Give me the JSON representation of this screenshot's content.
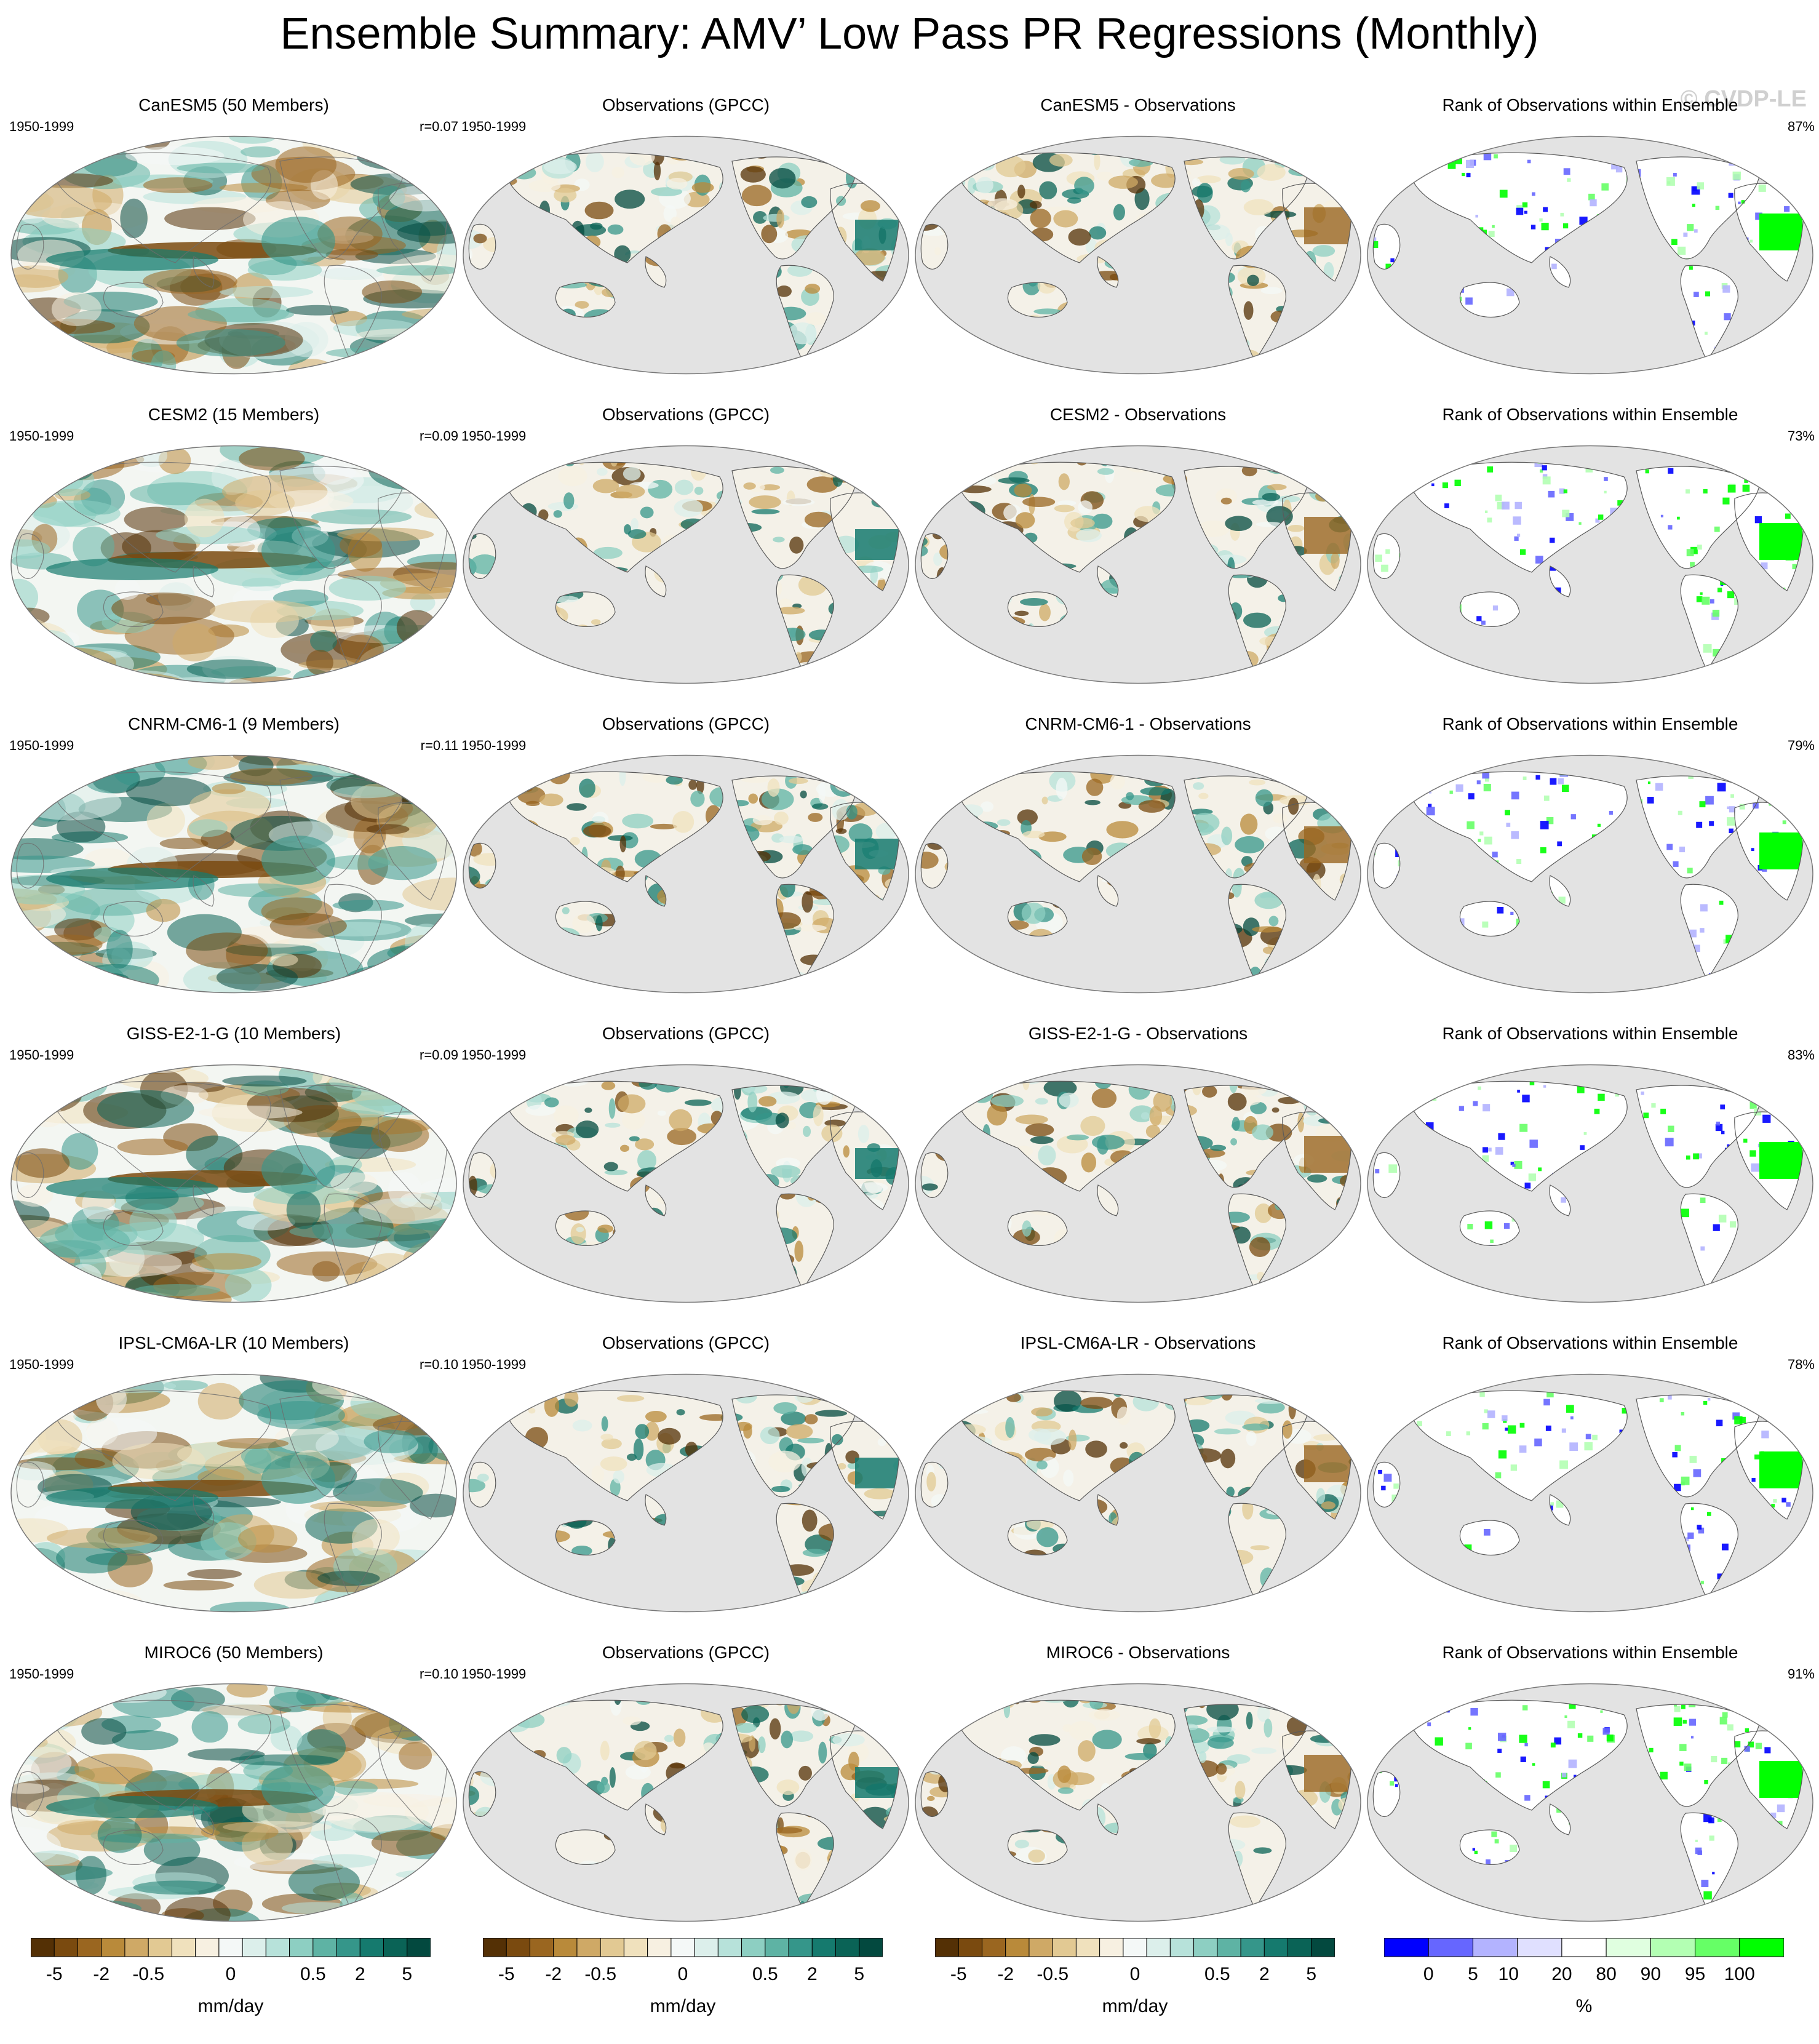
{
  "title": "Ensemble Summary: AMV’ Low Pass PR Regressions (Monthly)",
  "watermark": "© CVDP-LE",
  "colors": {
    "ocean_mask": "#e3e3e3",
    "coast": "#555555",
    "brown_dark": "#5e3607",
    "teal_dark": "#0b5a4c",
    "rank_blue": "#0000ff",
    "rank_green": "#00ff00"
  },
  "rows": [
    {
      "model": {
        "title": "CanESM5 (50 Members)",
        "period": "1950-1999",
        "r": "r=0.07"
      },
      "obs": {
        "title": "Observations (GPCC)",
        "period": "1950-1999"
      },
      "diff": {
        "title": "CanESM5 - Observations"
      },
      "rank": {
        "title": "Rank of Observations within Ensemble",
        "pct": "87%"
      }
    },
    {
      "model": {
        "title": "CESM2 (15 Members)",
        "period": "1950-1999",
        "r": "r=0.09"
      },
      "obs": {
        "title": "Observations (GPCC)",
        "period": "1950-1999"
      },
      "diff": {
        "title": "CESM2 - Observations"
      },
      "rank": {
        "title": "Rank of Observations within Ensemble",
        "pct": "73%"
      }
    },
    {
      "model": {
        "title": "CNRM-CM6-1 (9 Members)",
        "period": "1950-1999",
        "r": "r=0.11"
      },
      "obs": {
        "title": "Observations (GPCC)",
        "period": "1950-1999"
      },
      "diff": {
        "title": "CNRM-CM6-1 - Observations"
      },
      "rank": {
        "title": "Rank of Observations within Ensemble",
        "pct": "79%"
      }
    },
    {
      "model": {
        "title": "GISS-E2-1-G (10 Members)",
        "period": "1950-1999",
        "r": "r=0.09"
      },
      "obs": {
        "title": "Observations (GPCC)",
        "period": "1950-1999"
      },
      "diff": {
        "title": "GISS-E2-1-G - Observations"
      },
      "rank": {
        "title": "Rank of Observations within Ensemble",
        "pct": "83%"
      }
    },
    {
      "model": {
        "title": "IPSL-CM6A-LR (10 Members)",
        "period": "1950-1999",
        "r": "r=0.10"
      },
      "obs": {
        "title": "Observations (GPCC)",
        "period": "1950-1999"
      },
      "diff": {
        "title": "IPSL-CM6A-LR - Observations"
      },
      "rank": {
        "title": "Rank of Observations within Ensemble",
        "pct": "78%"
      }
    },
    {
      "model": {
        "title": "MIROC6 (50 Members)",
        "period": "1950-1999",
        "r": "r=0.10"
      },
      "obs": {
        "title": "Observations (GPCC)",
        "period": "1950-1999"
      },
      "diff": {
        "title": "MIROC6 - Observations"
      },
      "rank": {
        "title": "Rank of Observations within Ensemble",
        "pct": "91%"
      }
    }
  ],
  "chart_data": {
    "type": "heatmap",
    "projection": "Robinson, Pacific-centered",
    "fields": [
      "model regression (global)",
      "observations (land only)",
      "model minus observations (land only)",
      "rank of observations within ensemble (land only)"
    ],
    "colorbar_pr": {
      "unit": "mm/day",
      "tick_labels": [
        "-5",
        "-2",
        "-0.5",
        "0",
        "0.5",
        "2",
        "5"
      ],
      "colors": [
        "#543005",
        "#7a4a0f",
        "#9a6620",
        "#b98a3a",
        "#cfa966",
        "#e2c993",
        "#f0e1bd",
        "#f7f0e1",
        "#f4f8f7",
        "#dcefeb",
        "#b7e2da",
        "#8dcfc2",
        "#5eb3a4",
        "#35968a",
        "#157a6e",
        "#0a6356",
        "#03493f"
      ]
    },
    "colorbar_rank": {
      "unit": "%",
      "tick_labels": [
        "0",
        "5",
        "10",
        "20",
        "80",
        "90",
        "95",
        "100"
      ],
      "colors": [
        "#0000ff",
        "#6666ff",
        "#b3b3ff",
        "#e0e0ff",
        "#ffffff",
        "#e0ffe0",
        "#b3ffb3",
        "#66ff66",
        "#00ff00"
      ]
    }
  }
}
